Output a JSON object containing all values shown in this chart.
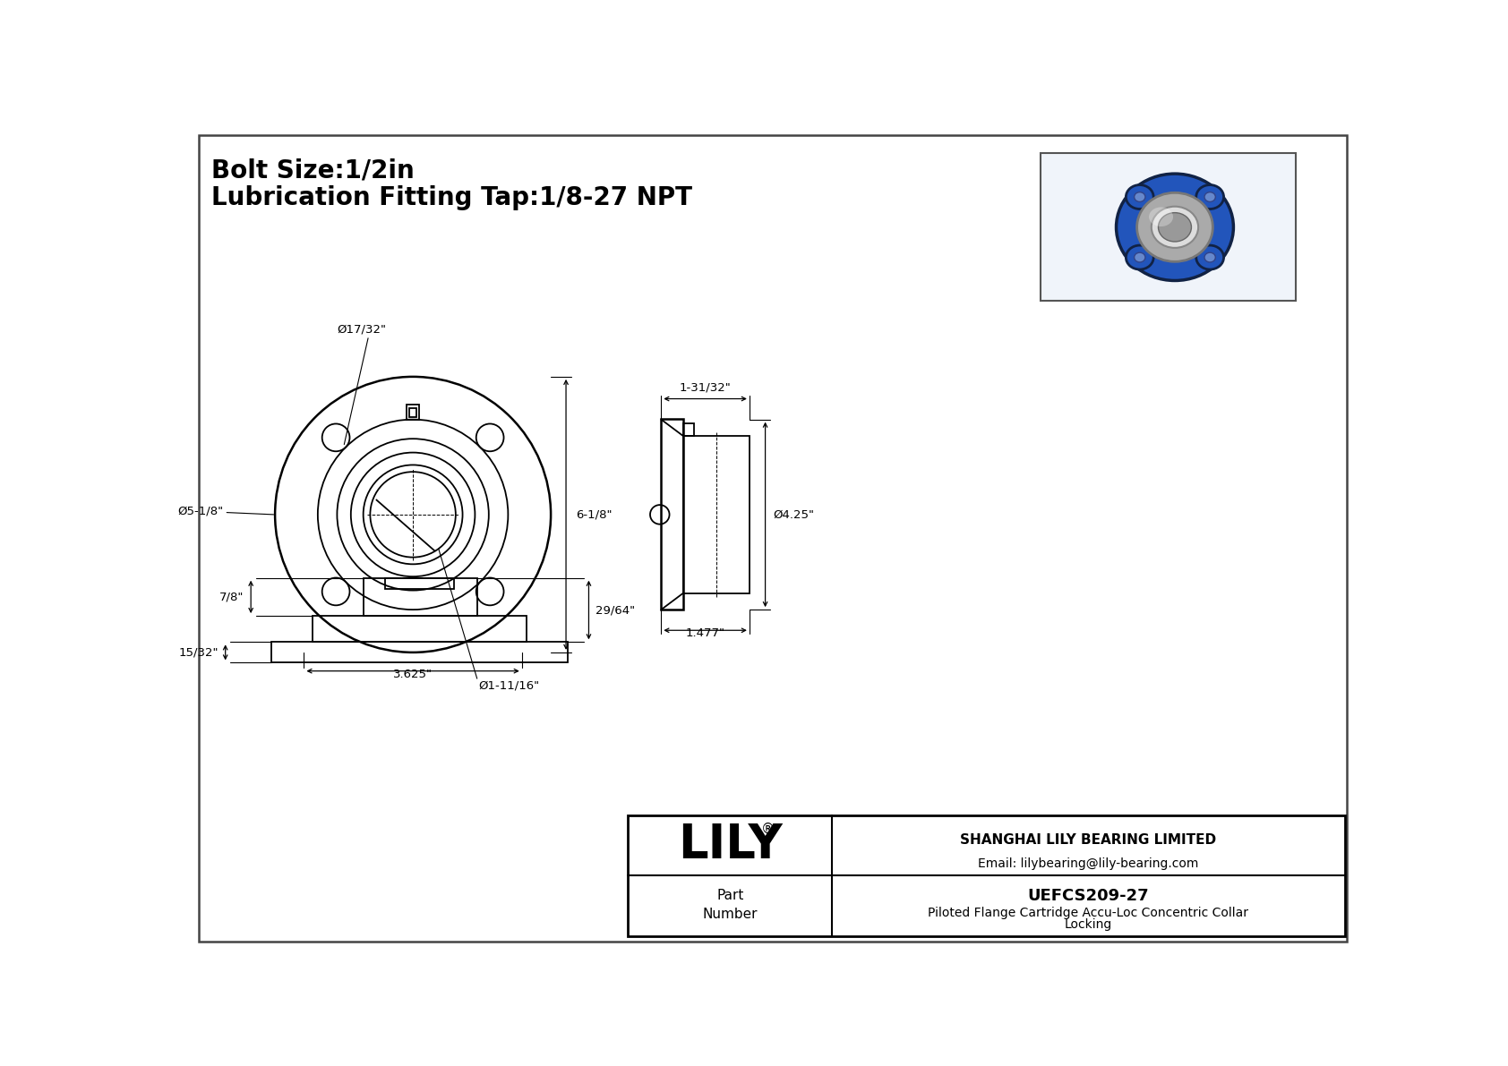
{
  "bg_color": "#ffffff",
  "line_color": "#000000",
  "title_line1": "Bolt Size:1/2in",
  "title_line2": "Lubrication Fitting Tap:1/8-27 NPT",
  "company": "SHANGHAI LILY BEARING LIMITED",
  "email": "Email: lilybearing@lily-bearing.com",
  "part_number": "UEFCS209-27",
  "part_desc1": "Piloted Flange Cartridge Accu-Loc Concentric Collar",
  "part_desc2": "Locking",
  "dim_bolt_hole": "Ø17/32\"",
  "dim_flange_dia": "Ø5-1/8\"",
  "dim_bore_dia": "Ø1-11/16\"",
  "dim_bolt_circle": "3.625\"",
  "dim_height": "6-1/8\"",
  "dim_side_width": "1-31/32\"",
  "dim_side_dia": "Ø4.25\"",
  "dim_side_depth": "1.477\"",
  "dim_bottom_left": "7/8\"",
  "dim_bottom_right": "29/64\"",
  "dim_bottom_base": "15/32\""
}
